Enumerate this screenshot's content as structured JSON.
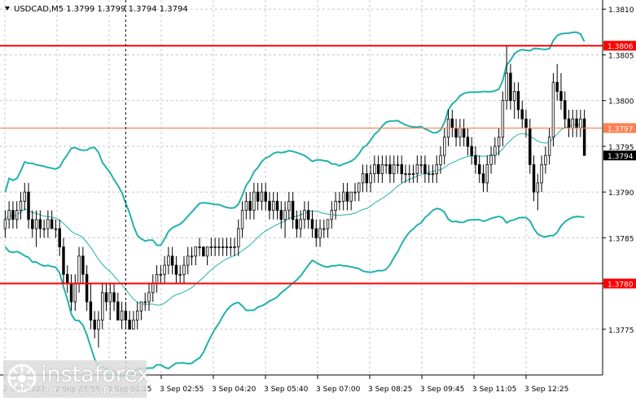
{
  "header": {
    "symbol_line": "USDCAD,M5  1.3799 1.3799 1.3794 1.3794"
  },
  "watermark": {
    "brand": "instaforex",
    "tagline": "Instant Forex Trading"
  },
  "colors": {
    "candle": "#000000",
    "bollinger": "#20b2aa",
    "support_resistance": "#ff0000",
    "current_level": "#ff7f50",
    "price_tag": "#000000",
    "grid": "#c8c8c8"
  },
  "chart_data": {
    "type": "candlestick",
    "symbol": "USDCAD",
    "timeframe": "M5",
    "ylim": [
      1.377,
      1.3811
    ],
    "price_ticks": [
      "1.3810",
      "1.3805",
      "1.3800",
      "1.3795",
      "1.3790",
      "1.3785",
      "1.3780",
      "1.3775"
    ],
    "time_ticks": [
      "2 Sep 2023",
      "2 Sep 23:55",
      "3 Sep 01:25",
      "3 Sep 02:55",
      "3 Sep 04:20",
      "3 Sep 05:40",
      "3 Sep 07:00",
      "3 Sep 08:25",
      "3 Sep 09:45",
      "3 Sep 11:05",
      "3 Sep 12:25"
    ],
    "horizontal_levels": [
      {
        "value": 1.3806,
        "label": "1.3806",
        "style": "red"
      },
      {
        "value": 1.3797,
        "label": "1.3797",
        "style": "orange"
      },
      {
        "value": 1.378,
        "label": "1.3780",
        "style": "red"
      }
    ],
    "current_price": {
      "value": 1.3794,
      "label": "1.3794"
    },
    "vertical_marker_index": 31,
    "ohlc": [
      [
        1.3786,
        1.3788,
        1.3785,
        1.3787
      ],
      [
        1.3787,
        1.3789,
        1.3786,
        1.3788
      ],
      [
        1.3788,
        1.3789,
        1.3786,
        1.3787
      ],
      [
        1.3787,
        1.3789,
        1.3786,
        1.3788
      ],
      [
        1.3788,
        1.379,
        1.3787,
        1.3789
      ],
      [
        1.3789,
        1.3791,
        1.3788,
        1.379
      ],
      [
        1.379,
        1.3791,
        1.3786,
        1.3787
      ],
      [
        1.3787,
        1.3788,
        1.3785,
        1.3786
      ],
      [
        1.3786,
        1.3788,
        1.3784,
        1.3787
      ],
      [
        1.3787,
        1.3788,
        1.3785,
        1.3786
      ],
      [
        1.3786,
        1.3787,
        1.3785,
        1.3786
      ],
      [
        1.3786,
        1.3788,
        1.3785,
        1.3787
      ],
      [
        1.3787,
        1.3788,
        1.3786,
        1.3786
      ],
      [
        1.3786,
        1.3787,
        1.3785,
        1.3786
      ],
      [
        1.3786,
        1.3787,
        1.3783,
        1.3784
      ],
      [
        1.3784,
        1.3785,
        1.378,
        1.3781
      ],
      [
        1.3781,
        1.3782,
        1.3779,
        1.378
      ],
      [
        1.378,
        1.3781,
        1.3777,
        1.3778
      ],
      [
        1.3778,
        1.3781,
        1.3777,
        1.378
      ],
      [
        1.378,
        1.3784,
        1.3779,
        1.3783
      ],
      [
        1.3783,
        1.3784,
        1.378,
        1.3781
      ],
      [
        1.3781,
        1.3782,
        1.3777,
        1.3778
      ],
      [
        1.3778,
        1.378,
        1.3775,
        1.3776
      ],
      [
        1.3776,
        1.3777,
        1.3774,
        1.3775
      ],
      [
        1.3775,
        1.3777,
        1.3773,
        1.3776
      ],
      [
        1.3776,
        1.378,
        1.3775,
        1.3779
      ],
      [
        1.3779,
        1.378,
        1.3777,
        1.3778
      ],
      [
        1.3778,
        1.378,
        1.3776,
        1.3779
      ],
      [
        1.3779,
        1.378,
        1.3777,
        1.3778
      ],
      [
        1.3778,
        1.3779,
        1.3776,
        1.3776
      ],
      [
        1.3776,
        1.3778,
        1.3775,
        1.3777
      ],
      [
        1.3777,
        1.3778,
        1.3775,
        1.3776
      ],
      [
        1.3776,
        1.3777,
        1.3775,
        1.3775
      ],
      [
        1.3775,
        1.3777,
        1.3775,
        1.3776
      ],
      [
        1.3776,
        1.3778,
        1.3775,
        1.3777
      ],
      [
        1.3777,
        1.3778,
        1.3776,
        1.3778
      ],
      [
        1.3778,
        1.3779,
        1.3777,
        1.3778
      ],
      [
        1.3778,
        1.378,
        1.3777,
        1.3779
      ],
      [
        1.3779,
        1.3781,
        1.3778,
        1.378
      ],
      [
        1.378,
        1.3782,
        1.3779,
        1.3781
      ],
      [
        1.3781,
        1.3782,
        1.378,
        1.3781
      ],
      [
        1.3781,
        1.3783,
        1.378,
        1.3782
      ],
      [
        1.3782,
        1.3784,
        1.3781,
        1.3783
      ],
      [
        1.3783,
        1.3784,
        1.3781,
        1.3782
      ],
      [
        1.3782,
        1.3783,
        1.378,
        1.3781
      ],
      [
        1.3781,
        1.3782,
        1.378,
        1.3781
      ],
      [
        1.3781,
        1.3783,
        1.378,
        1.3782
      ],
      [
        1.3782,
        1.3784,
        1.3781,
        1.3783
      ],
      [
        1.3783,
        1.3784,
        1.3782,
        1.3783
      ],
      [
        1.3783,
        1.3784,
        1.3782,
        1.3784
      ],
      [
        1.3784,
        1.3785,
        1.3783,
        1.3784
      ],
      [
        1.3784,
        1.3784,
        1.3783,
        1.3783
      ],
      [
        1.3783,
        1.3784,
        1.3782,
        1.3784
      ],
      [
        1.3784,
        1.3785,
        1.3783,
        1.3784
      ],
      [
        1.3784,
        1.3785,
        1.3783,
        1.3784
      ],
      [
        1.3784,
        1.3785,
        1.3783,
        1.3784
      ],
      [
        1.3784,
        1.3785,
        1.3783,
        1.3784
      ],
      [
        1.3784,
        1.3785,
        1.3783,
        1.3784
      ],
      [
        1.3784,
        1.3785,
        1.3783,
        1.3784
      ],
      [
        1.3784,
        1.3785,
        1.3783,
        1.3784
      ],
      [
        1.3784,
        1.3787,
        1.3783,
        1.3786
      ],
      [
        1.3786,
        1.3789,
        1.3785,
        1.3788
      ],
      [
        1.3788,
        1.379,
        1.3787,
        1.3789
      ],
      [
        1.3789,
        1.379,
        1.3787,
        1.3788
      ],
      [
        1.3788,
        1.3791,
        1.3787,
        1.379
      ],
      [
        1.379,
        1.3791,
        1.3788,
        1.3789
      ],
      [
        1.3789,
        1.3791,
        1.3788,
        1.379
      ],
      [
        1.379,
        1.3791,
        1.3788,
        1.3789
      ],
      [
        1.3789,
        1.379,
        1.3787,
        1.3788
      ],
      [
        1.3788,
        1.379,
        1.3787,
        1.3789
      ],
      [
        1.3789,
        1.379,
        1.3787,
        1.3788
      ],
      [
        1.3788,
        1.3789,
        1.3786,
        1.3787
      ],
      [
        1.3787,
        1.3789,
        1.3785,
        1.3788
      ],
      [
        1.3788,
        1.379,
        1.3787,
        1.3789
      ],
      [
        1.3789,
        1.379,
        1.3786,
        1.3787
      ],
      [
        1.3787,
        1.3788,
        1.3785,
        1.3786
      ],
      [
        1.3786,
        1.3788,
        1.3785,
        1.3787
      ],
      [
        1.3787,
        1.3789,
        1.3786,
        1.3788
      ],
      [
        1.3788,
        1.3789,
        1.3786,
        1.3787
      ],
      [
        1.3787,
        1.3788,
        1.3785,
        1.3786
      ],
      [
        1.3786,
        1.3787,
        1.3784,
        1.3785
      ],
      [
        1.3785,
        1.3787,
        1.3784,
        1.3786
      ],
      [
        1.3786,
        1.3787,
        1.3785,
        1.3786
      ],
      [
        1.3786,
        1.3787,
        1.3785,
        1.3787
      ],
      [
        1.3787,
        1.3789,
        1.3786,
        1.3788
      ],
      [
        1.3788,
        1.379,
        1.3787,
        1.3789
      ],
      [
        1.3789,
        1.379,
        1.3788,
        1.3789
      ],
      [
        1.3789,
        1.3791,
        1.3788,
        1.379
      ],
      [
        1.379,
        1.3791,
        1.3788,
        1.3789
      ],
      [
        1.3789,
        1.379,
        1.3788,
        1.379
      ],
      [
        1.379,
        1.3791,
        1.3789,
        1.379
      ],
      [
        1.379,
        1.3791,
        1.3789,
        1.3791
      ],
      [
        1.3791,
        1.3793,
        1.379,
        1.3792
      ],
      [
        1.3792,
        1.3793,
        1.379,
        1.3791
      ],
      [
        1.3791,
        1.3793,
        1.379,
        1.3792
      ],
      [
        1.3792,
        1.3794,
        1.3791,
        1.3793
      ],
      [
        1.3793,
        1.3794,
        1.3791,
        1.3792
      ],
      [
        1.3792,
        1.3794,
        1.3791,
        1.3793
      ],
      [
        1.3793,
        1.3794,
        1.3792,
        1.3793
      ],
      [
        1.3793,
        1.3794,
        1.3791,
        1.3792
      ],
      [
        1.3792,
        1.3794,
        1.3791,
        1.3793
      ],
      [
        1.3793,
        1.3794,
        1.3792,
        1.3793
      ],
      [
        1.3793,
        1.3794,
        1.3791,
        1.3792
      ],
      [
        1.3792,
        1.3793,
        1.3791,
        1.3792
      ],
      [
        1.3792,
        1.3793,
        1.3791,
        1.3792
      ],
      [
        1.3792,
        1.3793,
        1.3791,
        1.3792
      ],
      [
        1.3792,
        1.3794,
        1.3791,
        1.3793
      ],
      [
        1.3793,
        1.3794,
        1.3792,
        1.3793
      ],
      [
        1.3793,
        1.3794,
        1.3791,
        1.3792
      ],
      [
        1.3792,
        1.3793,
        1.3791,
        1.3792
      ],
      [
        1.3792,
        1.3793,
        1.3791,
        1.3792
      ],
      [
        1.3792,
        1.3794,
        1.3791,
        1.3793
      ],
      [
        1.3793,
        1.3795,
        1.3792,
        1.3794
      ],
      [
        1.3794,
        1.3797,
        1.3793,
        1.3796
      ],
      [
        1.3796,
        1.3799,
        1.3795,
        1.3798
      ],
      [
        1.3798,
        1.3799,
        1.3796,
        1.3797
      ],
      [
        1.3797,
        1.3798,
        1.3795,
        1.3796
      ],
      [
        1.3796,
        1.3798,
        1.3795,
        1.3797
      ],
      [
        1.3797,
        1.3798,
        1.3795,
        1.3796
      ],
      [
        1.3796,
        1.3797,
        1.3794,
        1.3795
      ],
      [
        1.3795,
        1.3796,
        1.3793,
        1.3794
      ],
      [
        1.3794,
        1.3795,
        1.3792,
        1.3793
      ],
      [
        1.3793,
        1.3794,
        1.3791,
        1.3792
      ],
      [
        1.3792,
        1.3793,
        1.379,
        1.3791
      ],
      [
        1.3791,
        1.3794,
        1.379,
        1.3793
      ],
      [
        1.3793,
        1.3795,
        1.3792,
        1.3794
      ],
      [
        1.3794,
        1.3796,
        1.3793,
        1.3795
      ],
      [
        1.3795,
        1.3797,
        1.3794,
        1.3796
      ],
      [
        1.3796,
        1.3801,
        1.3795,
        1.38
      ],
      [
        1.38,
        1.3806,
        1.3799,
        1.3803
      ],
      [
        1.3803,
        1.3804,
        1.3799,
        1.38
      ],
      [
        1.38,
        1.3802,
        1.3798,
        1.3801
      ],
      [
        1.3801,
        1.3802,
        1.3798,
        1.3799
      ],
      [
        1.3799,
        1.38,
        1.3797,
        1.3798
      ],
      [
        1.3798,
        1.3799,
        1.3796,
        1.3797
      ],
      [
        1.3797,
        1.3798,
        1.3792,
        1.3793
      ],
      [
        1.3793,
        1.3794,
        1.3789,
        1.379
      ],
      [
        1.379,
        1.3792,
        1.3788,
        1.3791
      ],
      [
        1.3791,
        1.3794,
        1.379,
        1.3793
      ],
      [
        1.3793,
        1.3795,
        1.3792,
        1.3794
      ],
      [
        1.3794,
        1.3797,
        1.3793,
        1.3796
      ],
      [
        1.3796,
        1.3803,
        1.3795,
        1.3802
      ],
      [
        1.3802,
        1.3804,
        1.38,
        1.3801
      ],
      [
        1.3801,
        1.3803,
        1.3799,
        1.38
      ],
      [
        1.38,
        1.3801,
        1.3797,
        1.3798
      ],
      [
        1.3798,
        1.3799,
        1.3796,
        1.3797
      ],
      [
        1.3797,
        1.3799,
        1.3796,
        1.3798
      ],
      [
        1.3798,
        1.3799,
        1.3796,
        1.3797
      ],
      [
        1.3797,
        1.3799,
        1.3796,
        1.3798
      ],
      [
        1.3798,
        1.3799,
        1.3794,
        1.3794
      ]
    ]
  }
}
